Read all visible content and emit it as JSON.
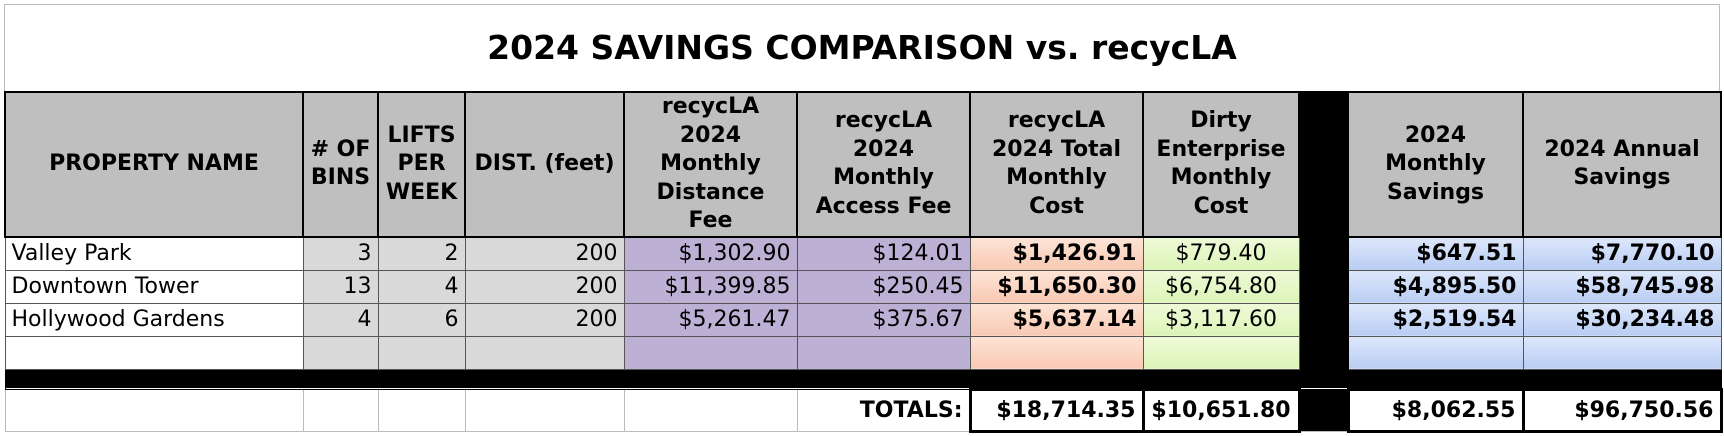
{
  "title": "2024 SAVINGS COMPARISON vs. recycLA",
  "table": {
    "headers": [
      "PROPERTY NAME",
      "# OF BINS",
      "LIFTS PER WEEK",
      "DIST. (feet)",
      "recycLA 2024 Monthly Distance Fee",
      "recycLA 2024 Monthly Access Fee",
      "recycLA 2024 Total Monthly Cost",
      "Dirty Enterprise Monthly Cost",
      "2024 Monthly Savings",
      "2024 Annual Savings"
    ],
    "rows": [
      [
        "Valley Park",
        "3",
        "2",
        "200",
        "$1,302.90",
        "$124.01",
        "$1,426.91",
        "$779.40",
        "$647.51",
        "$7,770.10"
      ],
      [
        "Downtown Tower",
        "13",
        "4",
        "200",
        "$11,399.85",
        "$250.45",
        "$11,650.30",
        "$6,754.80",
        "$4,895.50",
        "$58,745.98"
      ],
      [
        "Hollywood Gardens",
        "4",
        "6",
        "200",
        "$5,261.47",
        "$375.67",
        "$5,637.14",
        "$3,117.60",
        "$2,519.54",
        "$30,234.48"
      ]
    ],
    "totals_label": "TOTALS:",
    "totals": {
      "total_monthly_cost": "$18,714.35",
      "dirty_monthly_cost": "$10,651.80",
      "monthly_savings": "$8,062.55",
      "annual_savings": "$96,750.56"
    }
  }
}
